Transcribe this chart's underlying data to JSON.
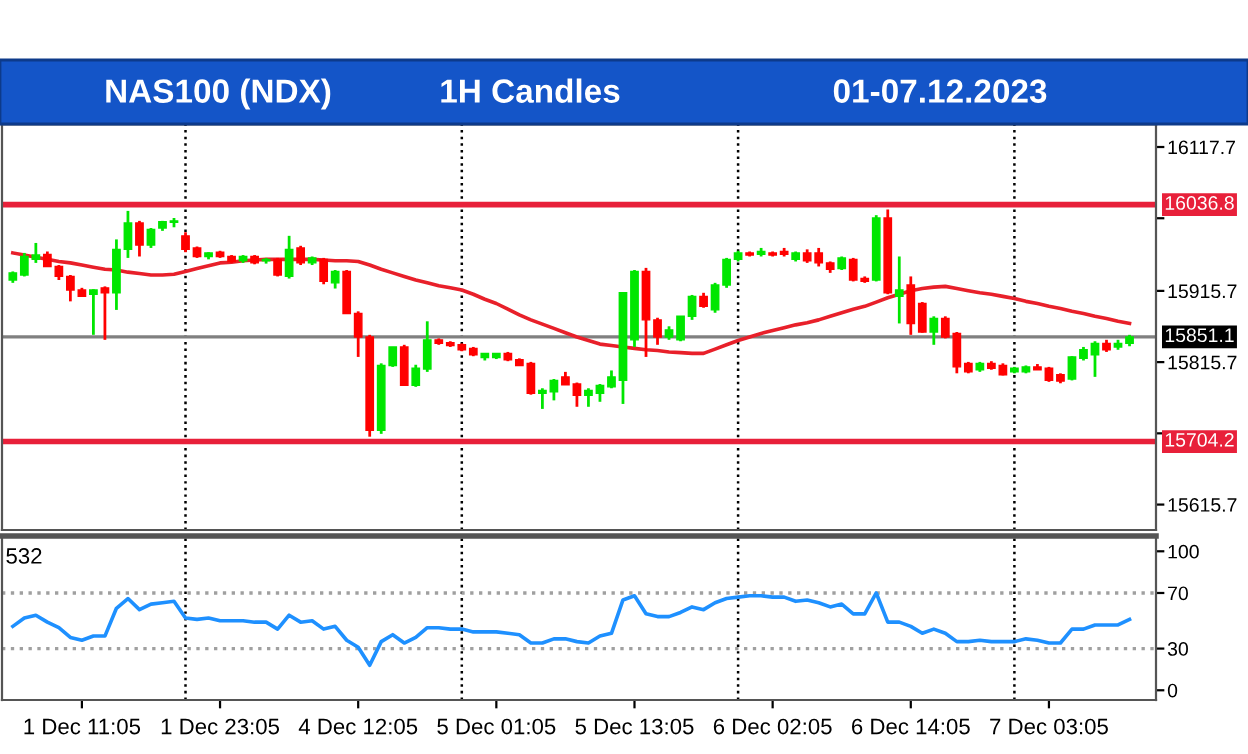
{
  "chart_data": [
    {
      "type": "candlestick",
      "title": "NAS100 (NDX)",
      "subtitle": "1H Candles",
      "annotations": [
        "01-07.12.2023"
      ],
      "categories": [
        null,
        null,
        null,
        null,
        null,
        null,
        null,
        null,
        null,
        null,
        null,
        null,
        null,
        null,
        null,
        null,
        null,
        null,
        null,
        null,
        null,
        null,
        null,
        null,
        null,
        null,
        null,
        null,
        null,
        null,
        null,
        null,
        null,
        null,
        null,
        null,
        null,
        null,
        null,
        null,
        null,
        null,
        null,
        null,
        null,
        null,
        null,
        null,
        null,
        null,
        null,
        null,
        null,
        null,
        null,
        null,
        null,
        null,
        null,
        null,
        null,
        null,
        null,
        null,
        null,
        null,
        null,
        null,
        null,
        null,
        null,
        null,
        null,
        null,
        null,
        null,
        null,
        null,
        null,
        null,
        null,
        null,
        null,
        null,
        null,
        null,
        null,
        null,
        null,
        null,
        null,
        null,
        null,
        null,
        null,
        null,
        null,
        null
      ],
      "ohlc": [
        [
          15931,
          15943,
          15927,
          15941
        ],
        [
          15938,
          15969,
          15936,
          15964
        ],
        [
          15960,
          15983,
          15955,
          15966
        ],
        [
          15967,
          15971,
          15950,
          15950
        ],
        [
          15950,
          15952,
          15931,
          15936
        ],
        [
          15936,
          15938,
          15901,
          15917
        ],
        [
          15917,
          15920,
          15908,
          15908
        ],
        [
          15911,
          15918,
          15854,
          15917
        ],
        [
          15920,
          15922,
          15847,
          15913
        ],
        [
          15913,
          15988,
          15889,
          15974
        ],
        [
          15974,
          16028,
          15962,
          16011
        ],
        [
          16011,
          16014,
          15964,
          15980
        ],
        [
          15980,
          16004,
          15976,
          16002
        ],
        [
          16004,
          16014,
          16000,
          16013
        ],
        [
          16012,
          16018,
          16005,
          16014
        ],
        [
          15993,
          15998,
          15970,
          15974
        ],
        [
          15976,
          15978,
          15962,
          15964
        ],
        [
          15964,
          15970,
          15960,
          15969
        ],
        [
          15970,
          15972,
          15962,
          15964
        ],
        [
          15964,
          15966,
          15955,
          15957
        ],
        [
          15958,
          15966,
          15955,
          15964
        ],
        [
          15964,
          15966,
          15953,
          15955
        ],
        [
          15958,
          15962,
          15954,
          15960
        ],
        [
          15960,
          15962,
          15936,
          15938
        ],
        [
          15936,
          15993,
          15933,
          15974
        ],
        [
          15976,
          15979,
          15952,
          15955
        ],
        [
          15955,
          15964,
          15952,
          15962
        ],
        [
          15960,
          15962,
          15925,
          15929
        ],
        [
          15927,
          15945,
          15919,
          15943
        ],
        [
          15943,
          15945,
          15884,
          15884
        ],
        [
          15884,
          15887,
          15823,
          15851
        ],
        [
          15851,
          15854,
          15711,
          15720
        ],
        [
          15720,
          15814,
          15715,
          15811
        ],
        [
          15811,
          15837,
          15809,
          15837
        ],
        [
          15837,
          15840,
          15783,
          15783
        ],
        [
          15783,
          15812,
          15781,
          15807
        ],
        [
          15806,
          15873,
          15802,
          15847
        ],
        [
          15847,
          15849,
          15840,
          15842
        ],
        [
          15843,
          15845,
          15837,
          15839
        ],
        [
          15840,
          15842,
          15831,
          15833
        ],
        [
          15835,
          15837,
          15824,
          15826
        ],
        [
          15822,
          15828,
          15818,
          15828
        ],
        [
          15822,
          15828,
          15820,
          15828
        ],
        [
          15828,
          15830,
          15817,
          15819
        ],
        [
          15819,
          15821,
          15811,
          15811
        ],
        [
          15814,
          15816,
          15770,
          15772
        ],
        [
          15772,
          15779,
          15750,
          15776
        ],
        [
          15774,
          15792,
          15762,
          15790
        ],
        [
          15795,
          15802,
          15784,
          15784
        ],
        [
          15785,
          15787,
          15753,
          15769
        ],
        [
          15769,
          15779,
          15753,
          15776
        ],
        [
          15772,
          15785,
          15760,
          15783
        ],
        [
          15781,
          15804,
          15779,
          15795
        ],
        [
          15790,
          15914,
          15757,
          15913
        ],
        [
          15847,
          15945,
          15837,
          15943
        ],
        [
          15943,
          15948,
          15823,
          15875
        ],
        [
          15875,
          15878,
          15840,
          15851
        ],
        [
          15851,
          15866,
          15847,
          15861
        ],
        [
          15847,
          15880,
          15845,
          15880
        ],
        [
          15880,
          15910,
          15875,
          15908
        ],
        [
          15908,
          15913,
          15892,
          15894
        ],
        [
          15889,
          15927,
          15885,
          15924
        ],
        [
          15924,
          15962,
          15920,
          15960
        ],
        [
          15960,
          15972,
          15957,
          15969
        ],
        [
          15969,
          15971,
          15964,
          15966
        ],
        [
          15967,
          15976,
          15964,
          15971
        ],
        [
          15969,
          15971,
          15964,
          15966
        ],
        [
          15971,
          15976,
          15964,
          15967
        ],
        [
          15960,
          15971,
          15957,
          15969
        ],
        [
          15969,
          15974,
          15955,
          15958
        ],
        [
          15969,
          15976,
          15950,
          15955
        ],
        [
          15955,
          15957,
          15941,
          15946
        ],
        [
          15947,
          15964,
          15945,
          15962
        ],
        [
          15960,
          15962,
          15929,
          15931
        ],
        [
          15933,
          15936,
          15927,
          15929
        ],
        [
          15931,
          16022,
          15929,
          16018
        ],
        [
          16018,
          16030,
          15911,
          15913
        ],
        [
          15908,
          15964,
          15870,
          15917
        ],
        [
          15924,
          15936,
          15854,
          15870
        ],
        [
          15898,
          15900,
          15857,
          15858
        ],
        [
          15858,
          15880,
          15840,
          15877
        ],
        [
          15877,
          15880,
          15849,
          15851
        ],
        [
          15856,
          15858,
          15800,
          15809
        ],
        [
          15814,
          15816,
          15800,
          15802
        ],
        [
          15805,
          15816,
          15802,
          15814
        ],
        [
          15814,
          15817,
          15805,
          15807
        ],
        [
          15811,
          15814,
          15797,
          15798
        ],
        [
          15802,
          15809,
          15800,
          15807
        ],
        [
          15802,
          15811,
          15800,
          15809
        ],
        [
          15809,
          15813,
          15805,
          15805
        ],
        [
          15807,
          15809,
          15788,
          15790
        ],
        [
          15798,
          15800,
          15786,
          15789
        ],
        [
          15792,
          15824,
          15790,
          15823
        ],
        [
          15821,
          15837,
          15818,
          15833
        ],
        [
          15826,
          15845,
          15795,
          15842
        ],
        [
          15842,
          15847,
          15830,
          15833
        ],
        [
          15837,
          15847,
          15833,
          15842
        ],
        [
          15842,
          15854,
          15838,
          15851
        ]
      ],
      "colors": [
        "#00e600",
        "#00e600",
        "#00e600",
        "#ff0000",
        "#ff0000",
        "#ff0000",
        "#ff0000",
        "#00e600",
        "#ff0000",
        "#00e600",
        "#00e600",
        "#ff0000",
        "#00e600",
        "#00e600",
        "#00e600",
        "#ff0000",
        "#ff0000",
        "#00e600",
        "#ff0000",
        "#ff0000",
        "#00e600",
        "#ff0000",
        "#00e600",
        "#ff0000",
        "#00e600",
        "#ff0000",
        "#00e600",
        "#ff0000",
        "#00e600",
        "#ff0000",
        "#ff0000",
        "#ff0000",
        "#00e600",
        "#00e600",
        "#ff0000",
        "#00e600",
        "#00e600",
        "#ff0000",
        "#ff0000",
        "#ff0000",
        "#ff0000",
        "#00e600",
        "#00e600",
        "#ff0000",
        "#ff0000",
        "#ff0000",
        "#00e600",
        "#00e600",
        "#ff0000",
        "#ff0000",
        "#00e600",
        "#00e600",
        "#00e600",
        "#00e600",
        "#00e600",
        "#ff0000",
        "#ff0000",
        "#00e600",
        "#00e600",
        "#00e600",
        "#ff0000",
        "#00e600",
        "#00e600",
        "#00e600",
        "#ff0000",
        "#00e600",
        "#ff0000",
        "#ff0000",
        "#00e600",
        "#ff0000",
        "#ff0000",
        "#ff0000",
        "#00e600",
        "#ff0000",
        "#ff0000",
        "#00e600",
        "#ff0000",
        "#00e600",
        "#ff0000",
        "#ff0000",
        "#00e600",
        "#ff0000",
        "#ff0000",
        "#ff0000",
        "#00e600",
        "#ff0000",
        "#ff0000",
        "#00e600",
        "#00e600",
        "#ff0000",
        "#ff0000",
        "#ff0000",
        "#00e600",
        "#00e600",
        "#00e600",
        "#ff0000",
        "#00e600",
        "#00e600"
      ],
      "series": [
        {
          "type": "line",
          "color": "#e8202a",
          "values": [
            15969,
            15966,
            15963,
            15960,
            15957,
            15955,
            15952,
            15949,
            15946,
            15945,
            15942,
            15940,
            15938,
            15938,
            15939,
            15943,
            15947,
            15951,
            15955,
            15956,
            15958,
            15959,
            15960,
            15960,
            15960,
            15960,
            15960,
            15959,
            15958,
            15958,
            15957,
            15952,
            15946,
            15941,
            15936,
            15931,
            15927,
            15923,
            15920,
            15917,
            15911,
            15904,
            15898,
            15890,
            15882,
            15875,
            15869,
            15863,
            15857,
            15851,
            15846,
            15841,
            15839,
            15837,
            15835,
            15833,
            15832,
            15830,
            15829,
            15828,
            15828,
            15834,
            15840,
            15846,
            15851,
            15856,
            15860,
            15864,
            15868,
            15871,
            15875,
            15880,
            15885,
            15890,
            15894,
            15900,
            15906,
            15911,
            15916,
            15919,
            15921,
            15922,
            15919,
            15916,
            15913,
            15911,
            15908,
            15905,
            15901,
            15898,
            15894,
            15891,
            15887,
            15884,
            15880,
            15877,
            15873,
            15870
          ]
        }
      ],
      "ylim": [
        15580,
        16150
      ],
      "yticks": [
        16117.7,
        {
          "value": 16017.7,
          "label": null
        },
        15915.7,
        15815.7,
        {
          "value": 15715.7,
          "label": null
        },
        15615.7
      ],
      "tick_labels": "y",
      "grid": "x",
      "ref_lines": [
        {
          "axis": "y",
          "value": 16036.8,
          "label": "16036.8",
          "color": "#e8203a",
          "line_style": "solid"
        },
        {
          "axis": "y",
          "value": 15704.2,
          "label": "15704.2",
          "color": "#e8203a",
          "line_style": "solid"
        },
        {
          "axis": "y",
          "value": 15851.1,
          "label": "15851.1",
          "color": "#808080",
          "line_style": "solid"
        }
      ]
    },
    {
      "type": "line",
      "annotations": [
        "532"
      ],
      "categories": [
        null,
        null,
        null,
        null,
        null,
        null,
        "1 Dec 11:05",
        null,
        null,
        null,
        null,
        null,
        null,
        null,
        null,
        null,
        null,
        null,
        "1 Dec 23:05",
        null,
        null,
        null,
        null,
        null,
        null,
        null,
        null,
        null,
        null,
        null,
        "4 Dec 12:05",
        null,
        null,
        null,
        null,
        null,
        null,
        null,
        null,
        null,
        null,
        null,
        "5 Dec 01:05",
        null,
        null,
        null,
        null,
        null,
        null,
        null,
        null,
        null,
        null,
        null,
        "5 Dec 13:05",
        null,
        null,
        null,
        null,
        null,
        null,
        null,
        null,
        null,
        null,
        null,
        "6 Dec 02:05",
        null,
        null,
        null,
        null,
        null,
        null,
        null,
        null,
        null,
        null,
        null,
        "6 Dec 14:05",
        null,
        null,
        null,
        null,
        null,
        null,
        null,
        null,
        null,
        null,
        null,
        "7 Dec 03:05",
        null,
        null,
        null,
        null,
        null,
        null,
        null
      ],
      "series": [
        {
          "color": "#1e90ff",
          "values": [
            46,
            52,
            54,
            49,
            45,
            38,
            36,
            39,
            39,
            59,
            66,
            58,
            62,
            63,
            64,
            52,
            51,
            52,
            50,
            50,
            50,
            49,
            49,
            44,
            54,
            49,
            50,
            44,
            46,
            36,
            31,
            18,
            35,
            40,
            34,
            38,
            45,
            45,
            44,
            44,
            42,
            42,
            42,
            41,
            40,
            34,
            34,
            37,
            37,
            35,
            34,
            39,
            41,
            65,
            68,
            55,
            53,
            53,
            56,
            60,
            58,
            63,
            66,
            67,
            68,
            68,
            67,
            67,
            64,
            65,
            63,
            60,
            62,
            55,
            55,
            70,
            49,
            49,
            46,
            41,
            44,
            41,
            35,
            35,
            36,
            35,
            35,
            35,
            37,
            36,
            34,
            34,
            44,
            44,
            47,
            47,
            47,
            51
          ]
        }
      ],
      "ylim": [
        -7,
        111
      ],
      "yticks": [
        0,
        30,
        70,
        100
      ],
      "grid": "x",
      "ref_lines": [
        {
          "axis": "y",
          "value": 70,
          "color": "#a0a0a0",
          "line_style": "dotted"
        },
        {
          "axis": "y",
          "value": 30,
          "color": "#a0a0a0",
          "line_style": "dotted"
        }
      ]
    }
  ]
}
